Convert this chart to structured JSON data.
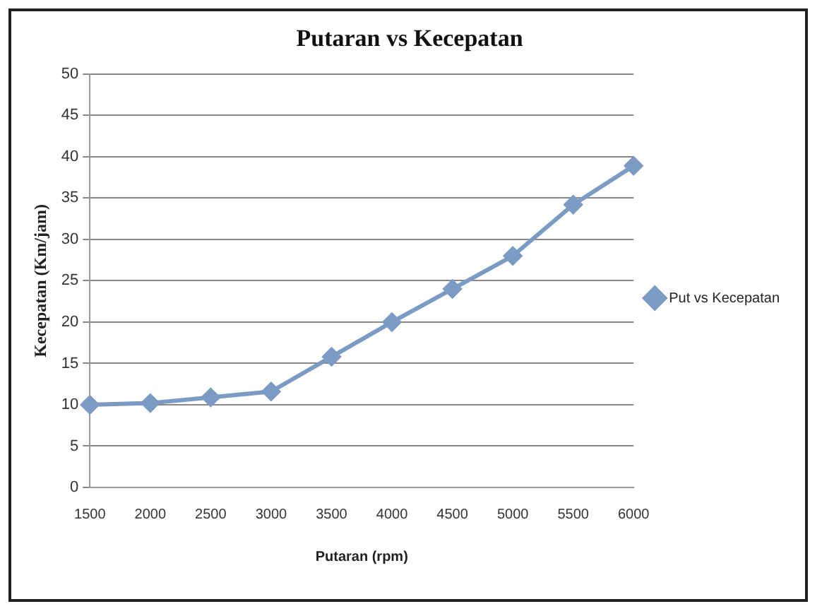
{
  "chart_data": {
    "type": "line",
    "title": "Putaran vs Kecepatan",
    "xlabel": "Putaran (rpm)",
    "ylabel": "Kecepatan (Km/jam)",
    "categories": [
      "1500",
      "2000",
      "2500",
      "3000",
      "3500",
      "4000",
      "4500",
      "5000",
      "5500",
      "6000"
    ],
    "series": [
      {
        "name": "Put vs Kecepatan",
        "color": "#7b9bc4",
        "values": [
          10,
          10.2,
          10.9,
          11.6,
          15.8,
          20,
          24,
          28,
          34.2,
          38.9
        ]
      }
    ],
    "ylim": [
      0,
      50
    ],
    "yticks": [
      0,
      5,
      10,
      15,
      20,
      25,
      30,
      35,
      40,
      45,
      50
    ],
    "grid": "y",
    "legend": "right",
    "marker": "diamond",
    "line_style": "solid"
  }
}
